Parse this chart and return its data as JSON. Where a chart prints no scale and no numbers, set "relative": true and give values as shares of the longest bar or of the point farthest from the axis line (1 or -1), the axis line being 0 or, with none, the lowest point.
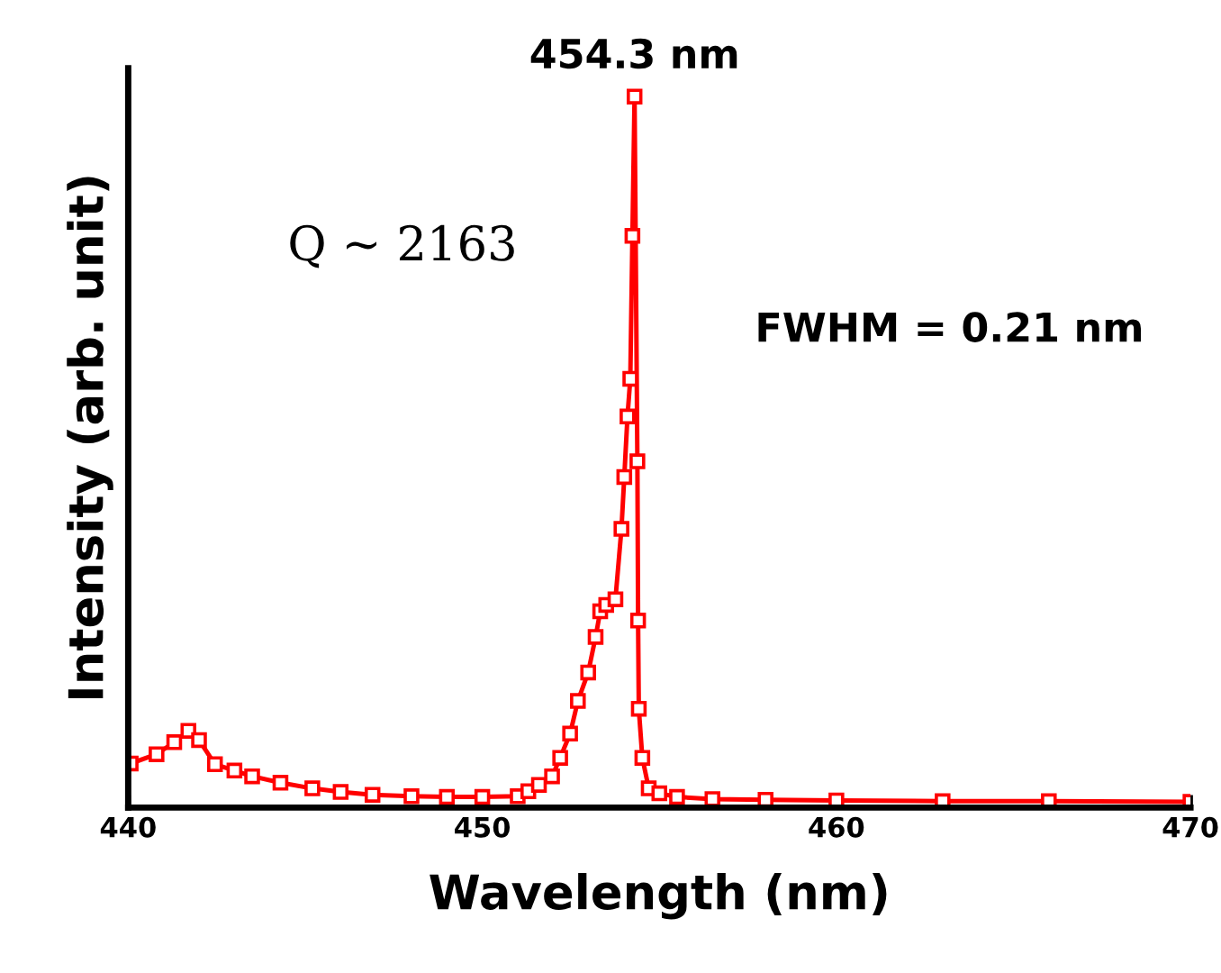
{
  "chart_data": {
    "type": "line",
    "relative": true,
    "xlabel": "Wavelength (nm)",
    "ylabel": "Intensity (arb. unit)",
    "xlim": [
      440,
      470
    ],
    "xticks": [
      440,
      450,
      460,
      470
    ],
    "tick_labels": "x",
    "marker": "square",
    "line_style": "solid",
    "grid": false,
    "annotations": [
      {
        "text": "454.3 nm",
        "x": 454.3,
        "y": 1.0
      },
      "Q ~ 2163",
      "FWHM = 0.21 nm"
    ],
    "series": [
      {
        "color": "#ff0000",
        "x": [
          440.07,
          440.8,
          441.3,
          441.7,
          442.0,
          442.45,
          443.0,
          443.5,
          444.3,
          445.2,
          446.0,
          446.9,
          448.0,
          449.0,
          450.0,
          451.0,
          451.3,
          451.6,
          451.97,
          452.2,
          452.48,
          452.7,
          452.99,
          453.2,
          453.33,
          453.5,
          453.76,
          453.93,
          454.01,
          454.1,
          454.18,
          454.24,
          454.3,
          454.38,
          454.4,
          454.42,
          454.52,
          454.7,
          455.0,
          455.5,
          456.5,
          458.0,
          460.0,
          463.0,
          466.0,
          470.0
        ],
        "values": [
          0.062,
          0.075,
          0.092,
          0.108,
          0.095,
          0.061,
          0.052,
          0.044,
          0.035,
          0.027,
          0.022,
          0.018,
          0.016,
          0.015,
          0.015,
          0.016,
          0.023,
          0.032,
          0.044,
          0.07,
          0.104,
          0.15,
          0.19,
          0.24,
          0.276,
          0.285,
          0.293,
          0.392,
          0.465,
          0.55,
          0.603,
          0.804,
          1.0,
          0.487,
          0.263,
          0.139,
          0.07,
          0.027,
          0.02,
          0.015,
          0.012,
          0.011,
          0.01,
          0.009,
          0.009,
          0.008
        ]
      }
    ]
  }
}
